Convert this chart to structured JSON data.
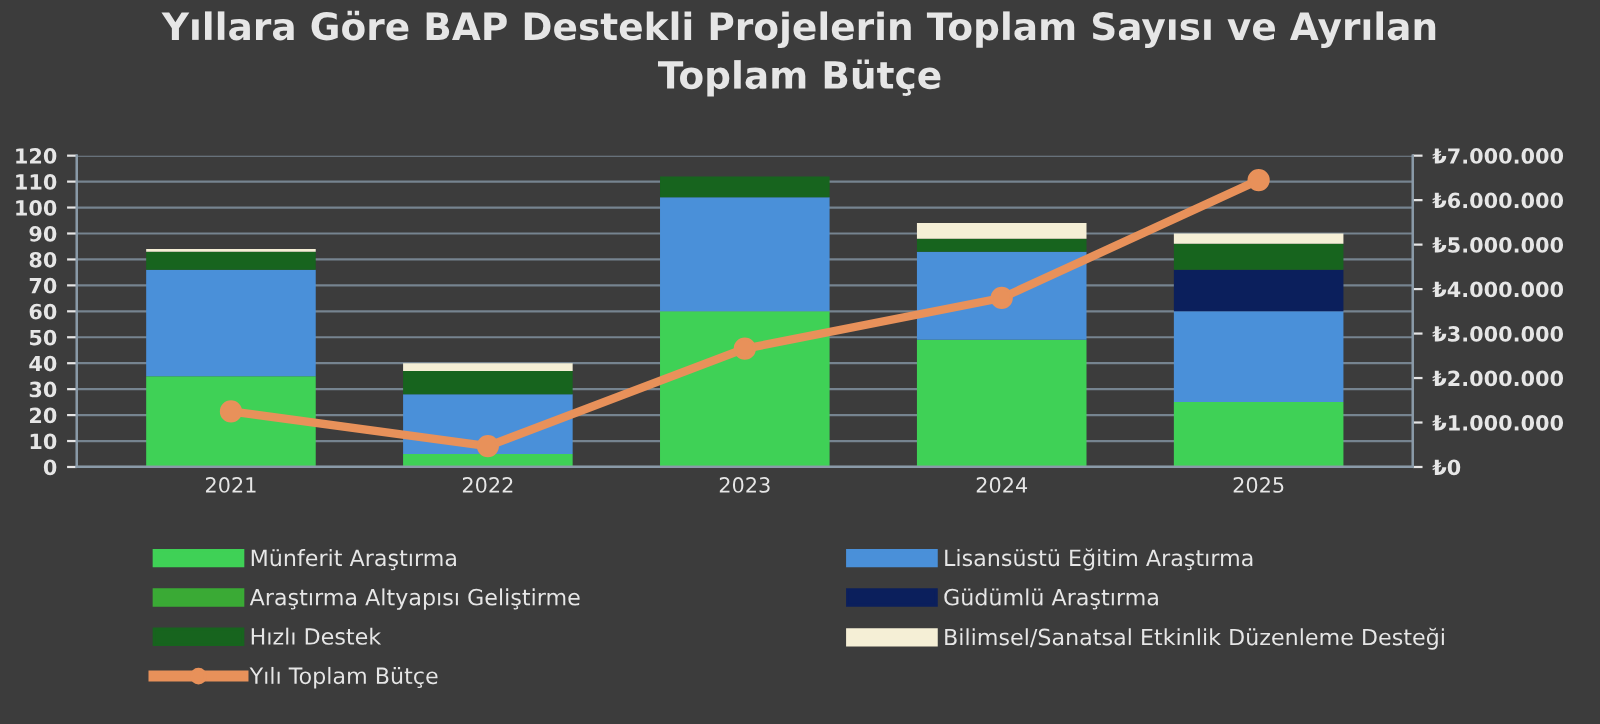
{
  "chart_data": {
    "type": "bar",
    "title": "Yıllara Göre BAP Destekli Projelerin Toplam Sayısı ve Ayrılan\nToplam Bütçe",
    "categories": [
      "2021",
      "2022",
      "2023",
      "2024",
      "2025"
    ],
    "stacked": true,
    "series": [
      {
        "name": "Münferit Araştırma",
        "color": "#3fd156",
        "values": [
          35,
          5,
          60,
          49,
          25
        ]
      },
      {
        "name": "Lisansüstü Eğitim Araştırma",
        "color": "#4a90d9",
        "values": [
          41,
          23,
          44,
          34,
          35
        ]
      },
      {
        "name": "Araştırma Altyapısı Geliştirme",
        "color": "#3aaa35",
        "values": [
          0,
          0,
          0,
          0,
          0
        ]
      },
      {
        "name": "Güdümlü Araştırma",
        "color": "#0b1f5c",
        "values": [
          0,
          0,
          0,
          0,
          16
        ]
      },
      {
        "name": "Hızlı Destek",
        "color": "#17641e",
        "values": [
          7,
          9,
          8,
          5,
          10
        ]
      },
      {
        "name": "Bilimsel/Sanatsal Etkinlik Düzenleme Desteği",
        "color": "#f5efd6",
        "values": [
          1,
          3,
          0,
          6,
          4
        ]
      },
      {
        "name": "Yılı Toplam Bütçe",
        "type": "line",
        "axis": "y2",
        "color": "#e8915a",
        "values": [
          1250000,
          470000,
          2660000,
          3800000,
          6450000
        ]
      }
    ],
    "marker": "circle",
    "ylim": [
      0,
      120
    ],
    "yticks": [
      0,
      10,
      20,
      30,
      40,
      50,
      60,
      70,
      80,
      90,
      100,
      110,
      120
    ],
    "y2lim": [
      0,
      7000000
    ],
    "y2ticks": [
      {
        "value": 0,
        "label": "₺0"
      },
      {
        "value": 1000000,
        "label": "₺1.000.000"
      },
      {
        "value": 2000000,
        "label": "₺2.000.000"
      },
      {
        "value": 3000000,
        "label": "₺3.000.000"
      },
      {
        "value": 4000000,
        "label": "₺4.000.000"
      },
      {
        "value": 5000000,
        "label": "₺5.000.000"
      },
      {
        "value": 6000000,
        "label": "₺6.000.000"
      },
      {
        "value": 7000000,
        "label": "₺7.000.000"
      }
    ],
    "grid": "y",
    "legend": "bottom"
  }
}
